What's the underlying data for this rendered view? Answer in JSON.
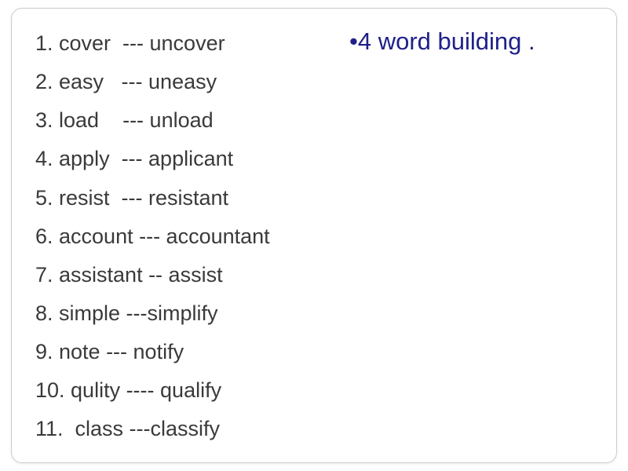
{
  "title": "•4 word building  .",
  "title_color": "#20208a",
  "title_fontsize": 31,
  "list_fontsize": 27,
  "list_color": "#3a3a3a",
  "background_color": "#ffffff",
  "border_color": "#cccccc",
  "word_list": [
    {
      "num": "1",
      "base": "cover",
      "sep": "---",
      "derived": "uncover",
      "pad1": "  ",
      "pad2": " "
    },
    {
      "num": "2",
      "base": "easy",
      "sep": "---",
      "derived": "uneasy",
      "pad1": "   ",
      "pad2": " "
    },
    {
      "num": "3",
      "base": "load",
      "sep": "---",
      "derived": "unload",
      "pad1": "    ",
      "pad2": " "
    },
    {
      "num": "4",
      "base": "apply",
      "sep": "---",
      "derived": "applicant",
      "pad1": "  ",
      "pad2": " "
    },
    {
      "num": "5",
      "base": "resist",
      "sep": "---",
      "derived": "resistant",
      "pad1": "  ",
      "pad2": " "
    },
    {
      "num": "6",
      "base": "account",
      "sep": "---",
      "derived": "accountant",
      "pad1": " ",
      "pad2": " "
    },
    {
      "num": "7",
      "base": "assistant",
      "sep": "--",
      "derived": "assist",
      "pad1": " ",
      "pad2": " "
    },
    {
      "num": "8",
      "base": "simple",
      "sep": "---",
      "derived": "simplify",
      "pad1": " ",
      "pad2": ""
    },
    {
      "num": "9",
      "base": "note",
      "sep": "---",
      "derived": "notify",
      "pad1": " ",
      "pad2": " "
    },
    {
      "num": "10",
      "base": "qulity",
      "sep": "----",
      "derived": "qualify",
      "pad1": " ",
      "pad2": " "
    },
    {
      "num": "11",
      "base": " class",
      "sep": "---",
      "derived": "classify",
      "pad1": " ",
      "pad2": ""
    }
  ]
}
